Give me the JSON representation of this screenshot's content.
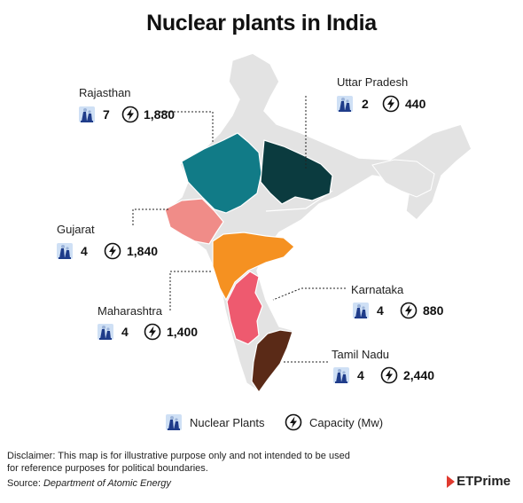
{
  "title": "Nuclear plants in India",
  "states": [
    {
      "name": "Rajasthan",
      "plants": "7",
      "capacity": "1,880",
      "color": "#117b87"
    },
    {
      "name": "Uttar Pradesh",
      "plants": "2",
      "capacity": "440",
      "color": "#0b3b3f"
    },
    {
      "name": "Gujarat",
      "plants": "4",
      "capacity": "1,840",
      "color": "#f08c88"
    },
    {
      "name": "Maharashtra",
      "plants": "4",
      "capacity": "1,400",
      "color": "#f59121"
    },
    {
      "name": "Karnataka",
      "plants": "4",
      "capacity": "880",
      "color": "#ee5a6f"
    },
    {
      "name": "Tamil Nadu",
      "plants": "4",
      "capacity": "2,440",
      "color": "#5a2a17"
    }
  ],
  "legend": {
    "plants_label": "Nuclear Plants",
    "capacity_label": "Capacity (Mw)"
  },
  "colors": {
    "base_land": "#e3e3e3",
    "plant_icon": "#1f3c8a"
  },
  "disclaimer": "Disclaimer: This map is for illustrative purpose only and not intended to be used for reference purposes for political boundaries.",
  "source_prefix": "Source:",
  "source_name": "Department of Atomic Energy",
  "brand": "ETPrime"
}
